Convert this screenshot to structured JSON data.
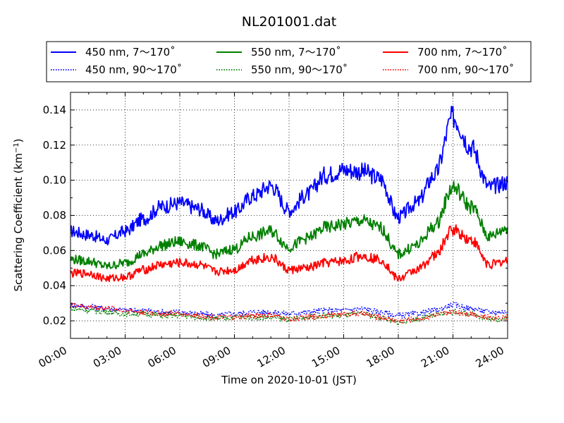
{
  "chart_data": {
    "type": "line",
    "title": "NL201001.dat",
    "xlabel": "Time on 2020-10-01 (JST)",
    "ylabel": "Scattering Coefficient (km",
    "ylabel_sup": "−1",
    "ylabel_close": ")",
    "xlim": [
      "00:00",
      "24:00"
    ],
    "ylim": [
      0.01,
      0.15
    ],
    "x_ticks": [
      "00:00",
      "03:00",
      "06:00",
      "09:00",
      "12:00",
      "15:00",
      "18:00",
      "21:00",
      "24:00"
    ],
    "y_ticks": [
      "0.02",
      "0.04",
      "0.06",
      "0.08",
      "0.10",
      "0.12",
      "0.14"
    ],
    "grid": true,
    "legend_position": "top (above plot, 3 columns)",
    "x_hours": [
      0,
      1,
      2,
      3,
      4,
      5,
      6,
      7,
      8,
      9,
      10,
      11,
      12,
      13,
      14,
      15,
      16,
      17,
      18,
      19,
      20,
      21,
      22,
      23,
      24
    ],
    "series": [
      {
        "name": "450 nm, 7～170˚",
        "color": "#0000ff",
        "style": "solid",
        "values": [
          0.071,
          0.069,
          0.066,
          0.071,
          0.078,
          0.085,
          0.087,
          0.084,
          0.077,
          0.082,
          0.091,
          0.097,
          0.083,
          0.092,
          0.103,
          0.106,
          0.105,
          0.101,
          0.079,
          0.087,
          0.103,
          0.136,
          0.119,
          0.096,
          0.099
        ]
      },
      {
        "name": "450 nm, 90～170˚",
        "color": "#0000ff",
        "style": "dotted",
        "values": [
          0.029,
          0.028,
          0.027,
          0.026,
          0.026,
          0.025,
          0.025,
          0.024,
          0.023,
          0.024,
          0.025,
          0.025,
          0.024,
          0.025,
          0.026,
          0.026,
          0.027,
          0.025,
          0.023,
          0.024,
          0.026,
          0.029,
          0.027,
          0.025,
          0.025
        ]
      },
      {
        "name": "550 nm, 7～170˚",
        "color": "#008000",
        "style": "solid",
        "values": [
          0.055,
          0.054,
          0.051,
          0.053,
          0.058,
          0.063,
          0.065,
          0.063,
          0.058,
          0.061,
          0.068,
          0.071,
          0.062,
          0.067,
          0.073,
          0.075,
          0.077,
          0.073,
          0.058,
          0.063,
          0.074,
          0.096,
          0.085,
          0.068,
          0.073
        ]
      },
      {
        "name": "550 nm, 90～170˚",
        "color": "#008000",
        "style": "dotted",
        "values": [
          0.027,
          0.026,
          0.025,
          0.024,
          0.024,
          0.023,
          0.023,
          0.022,
          0.021,
          0.022,
          0.022,
          0.022,
          0.021,
          0.022,
          0.023,
          0.023,
          0.024,
          0.022,
          0.019,
          0.021,
          0.023,
          0.025,
          0.024,
          0.021,
          0.021
        ]
      },
      {
        "name": "700 nm, 7～170˚",
        "color": "#ff0000",
        "style": "solid",
        "values": [
          0.047,
          0.047,
          0.044,
          0.045,
          0.049,
          0.052,
          0.053,
          0.052,
          0.048,
          0.049,
          0.055,
          0.056,
          0.049,
          0.05,
          0.053,
          0.054,
          0.057,
          0.055,
          0.044,
          0.049,
          0.057,
          0.072,
          0.066,
          0.052,
          0.054
        ]
      },
      {
        "name": "700 nm, 90～170˚",
        "color": "#ff0000",
        "style": "dotted",
        "values": [
          0.029,
          0.028,
          0.027,
          0.026,
          0.025,
          0.024,
          0.024,
          0.023,
          0.022,
          0.022,
          0.023,
          0.023,
          0.021,
          0.022,
          0.023,
          0.024,
          0.024,
          0.022,
          0.02,
          0.021,
          0.023,
          0.025,
          0.024,
          0.022,
          0.022
        ]
      }
    ]
  }
}
